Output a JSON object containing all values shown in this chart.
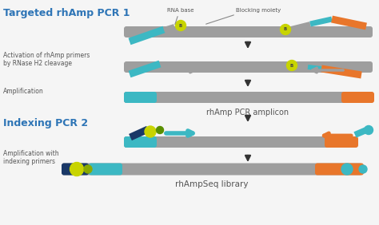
{
  "bg_color": "#f5f5f5",
  "title1": "Targeted rhAmp PCR 1",
  "title2": "Indexing PCR 2",
  "title_color": "#2e75b6",
  "label_color": "#555555",
  "gray": "#9e9e9e",
  "teal": "#3cb8c3",
  "orange": "#e8762b",
  "dark_blue": "#1a3867",
  "yellow_green": "#c8d400",
  "label1": "Activation of rhAmp primers\nby RNase H2 cleavage",
  "label2": "Amplification",
  "label3": "Amplification with\nindexing primers",
  "amplicon_label": "rhAmp PCR amplicon",
  "library_label": "rhAmpSeq library",
  "rna_base_label": "RNA base",
  "blocking_label": "Blocking moiety"
}
